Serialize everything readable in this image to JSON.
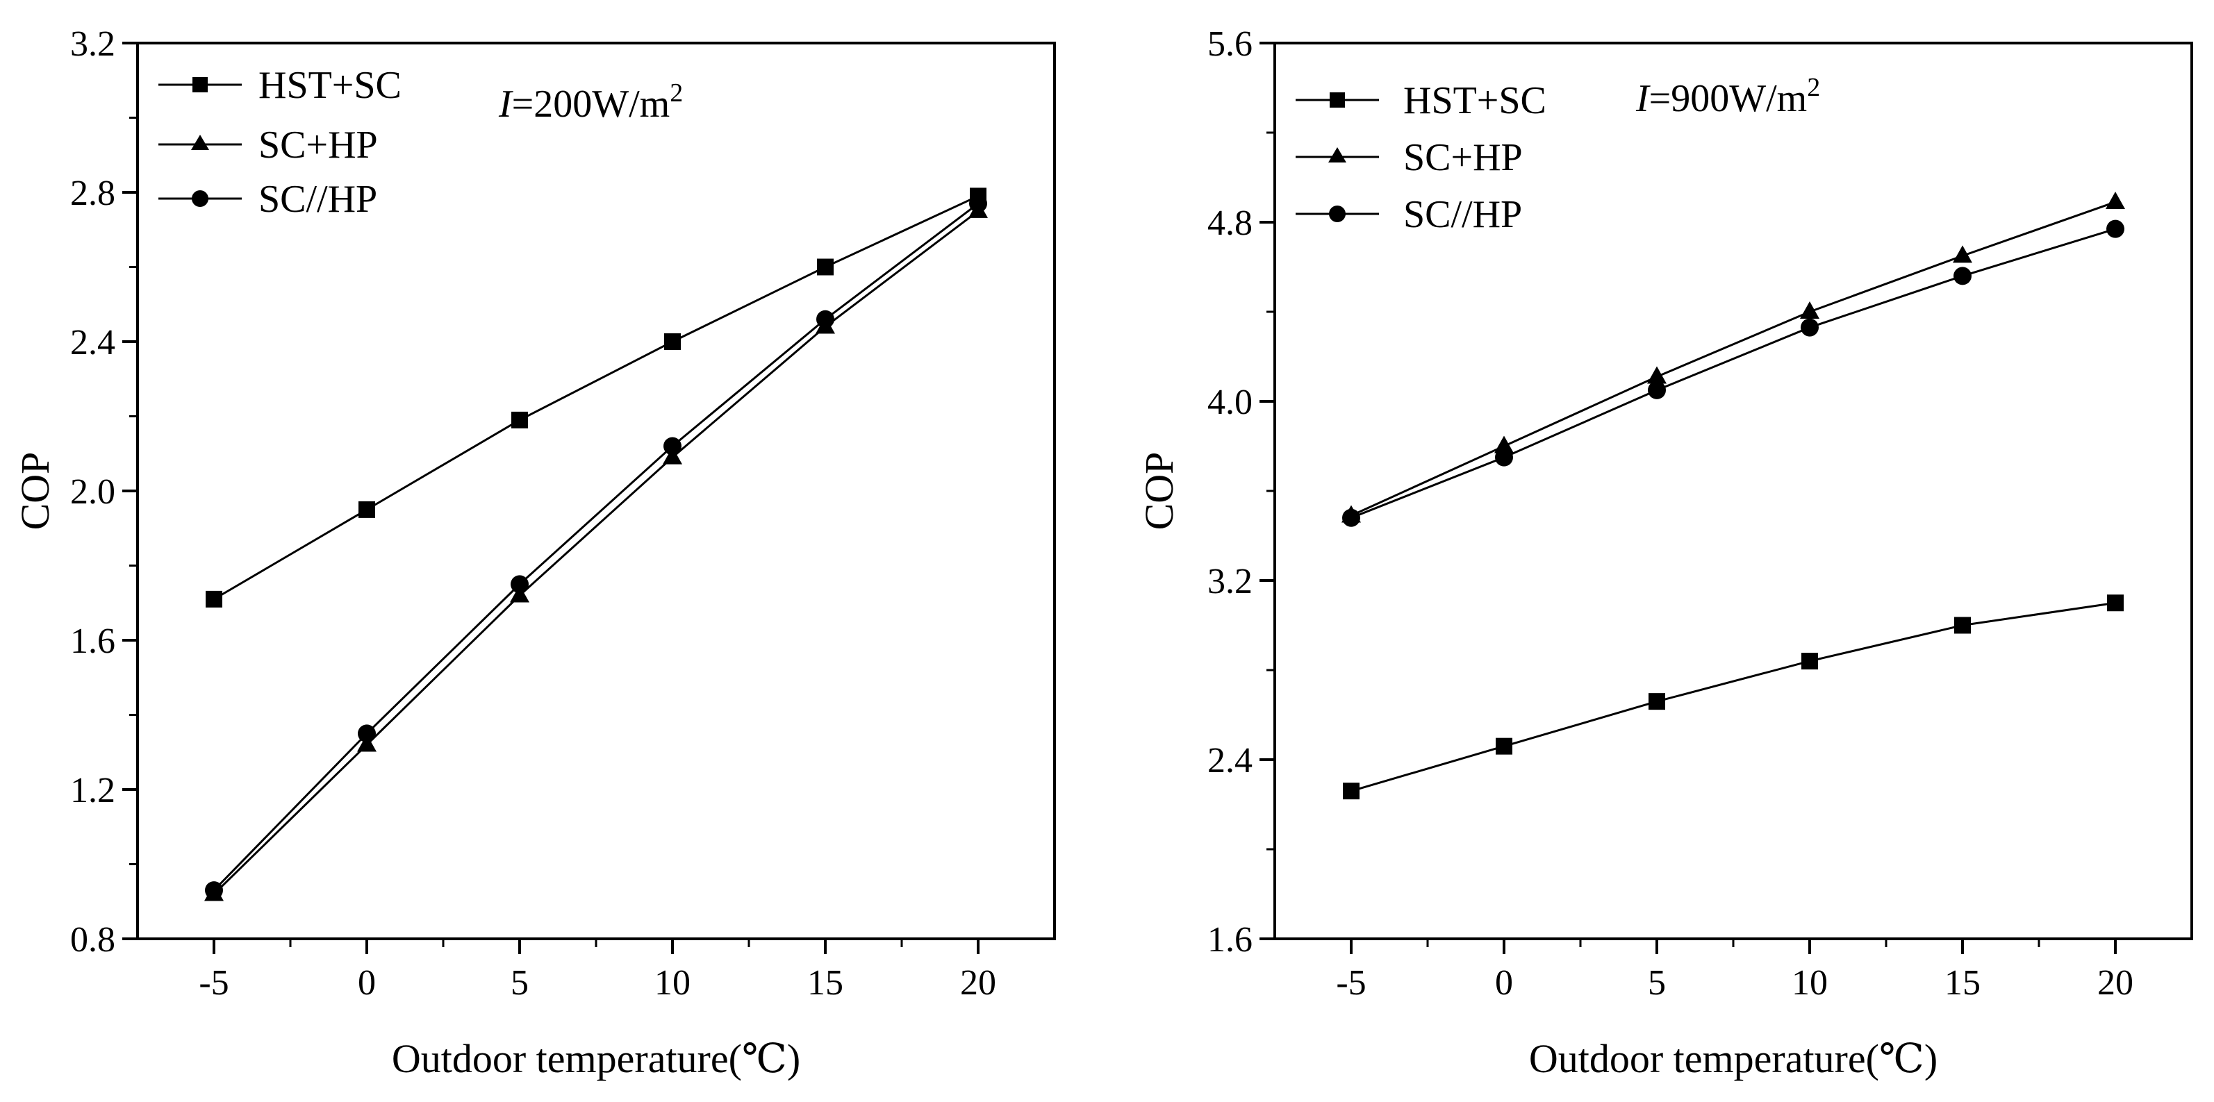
{
  "chart_data": [
    {
      "type": "line",
      "panel": "left",
      "x": [
        -5,
        0,
        5,
        10,
        15,
        20
      ],
      "series": [
        {
          "name": "HST+SC",
          "marker": "square",
          "values": [
            1.71,
            1.95,
            2.19,
            2.4,
            2.6,
            2.79
          ]
        },
        {
          "name": "SC+HP",
          "marker": "triangle",
          "values": [
            0.92,
            1.32,
            1.72,
            2.09,
            2.44,
            2.75
          ]
        },
        {
          "name": "SC//HP",
          "marker": "circle",
          "values": [
            0.93,
            1.35,
            1.75,
            2.12,
            2.46,
            2.77
          ]
        }
      ],
      "xlabel": "Outdoor temperature(℃)",
      "ylabel": "COP",
      "xlim": [
        -7.5,
        22.5
      ],
      "ylim": [
        0.8,
        3.2
      ],
      "xticks": [
        -5,
        0,
        5,
        10,
        15,
        20
      ],
      "yticks": [
        0.8,
        1.2,
        1.6,
        2.0,
        2.4,
        2.8,
        3.2
      ],
      "xtick_labels": [
        "-5",
        "0",
        "5",
        "10",
        "15",
        "20"
      ],
      "ytick_labels": [
        "0.8",
        "1.2",
        "1.6",
        "2.0",
        "2.4",
        "2.8",
        "3.2"
      ],
      "annotation": {
        "italic": "I",
        "text": "=200W/m",
        "sup": "2"
      },
      "legend_position": "top-left",
      "grid": false
    },
    {
      "type": "line",
      "panel": "right",
      "x": [
        -5,
        0,
        5,
        10,
        15,
        20
      ],
      "series": [
        {
          "name": "HST+SC",
          "marker": "square",
          "values": [
            2.26,
            2.46,
            2.66,
            2.84,
            3.0,
            3.1
          ]
        },
        {
          "name": "SC+HP",
          "marker": "triangle",
          "values": [
            3.49,
            3.8,
            4.11,
            4.4,
            4.65,
            4.89
          ]
        },
        {
          "name": "SC//HP",
          "marker": "circle",
          "values": [
            3.48,
            3.75,
            4.05,
            4.33,
            4.56,
            4.77
          ]
        }
      ],
      "xlabel": "Outdoor temperature(℃)",
      "ylabel": "COP",
      "xlim": [
        -7.5,
        22.5
      ],
      "ylim": [
        1.6,
        5.6
      ],
      "xticks": [
        -5,
        0,
        5,
        10,
        15,
        20
      ],
      "yticks": [
        1.6,
        2.4,
        3.2,
        4.0,
        4.8,
        5.6
      ],
      "xtick_labels": [
        "-5",
        "0",
        "5",
        "10",
        "15",
        "20"
      ],
      "ytick_labels": [
        "1.6",
        "2.4",
        "3.2",
        "4.0",
        "4.8",
        "5.6"
      ],
      "annotation": {
        "italic": "I",
        "text": "=900W/m",
        "sup": "2"
      },
      "legend_position": "top-left",
      "grid": false
    }
  ],
  "colors": {
    "line": "#000000",
    "background": "#ffffff"
  }
}
